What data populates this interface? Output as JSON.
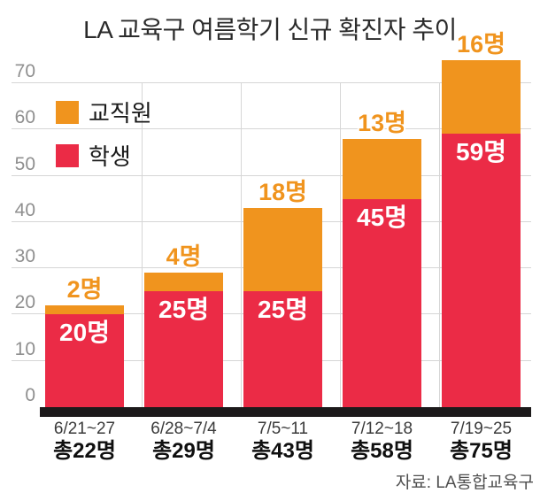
{
  "title": "LA 교육구 여름학기 신규 확진자 추이",
  "source": "자료: LA통합교육구",
  "legend": {
    "staff_label": "교직원",
    "students_label": "학생"
  },
  "colors": {
    "staff": "#F0941E",
    "students": "#EB2B46",
    "axis_bar": "#1D1A1B",
    "grid": "#D6D6D6",
    "tick_text": "#8F8F8F"
  },
  "chart_data": {
    "type": "bar",
    "stacked": true,
    "title": "LA 교육구 여름학기 신규 확진자 추이",
    "categories": [
      "6/21~27",
      "6/28~7/4",
      "7/5~11",
      "7/12~18",
      "7/19~25"
    ],
    "totals": [
      22,
      29,
      43,
      58,
      75
    ],
    "totals_labels": [
      "총22명",
      "총29명",
      "총43명",
      "총58명",
      "총75명"
    ],
    "series": [
      {
        "name": "학생",
        "color": "#EB2B46",
        "values": [
          20,
          25,
          25,
          45,
          59
        ],
        "labels": [
          "20명",
          "25명",
          "25명",
          "45명",
          "59명"
        ]
      },
      {
        "name": "교직원",
        "color": "#F0941E",
        "values": [
          2,
          4,
          18,
          13,
          16
        ],
        "labels": [
          "2명",
          "4명",
          "18명",
          "13명",
          "16명"
        ]
      }
    ],
    "xlabel": "",
    "ylabel": "",
    "ylim": [
      0,
      75
    ],
    "y_ticks": [
      0,
      10,
      20,
      30,
      40,
      50,
      60,
      70
    ],
    "grid": true,
    "legend_position": "upper-left",
    "source": "자료: LA통합교육구"
  }
}
